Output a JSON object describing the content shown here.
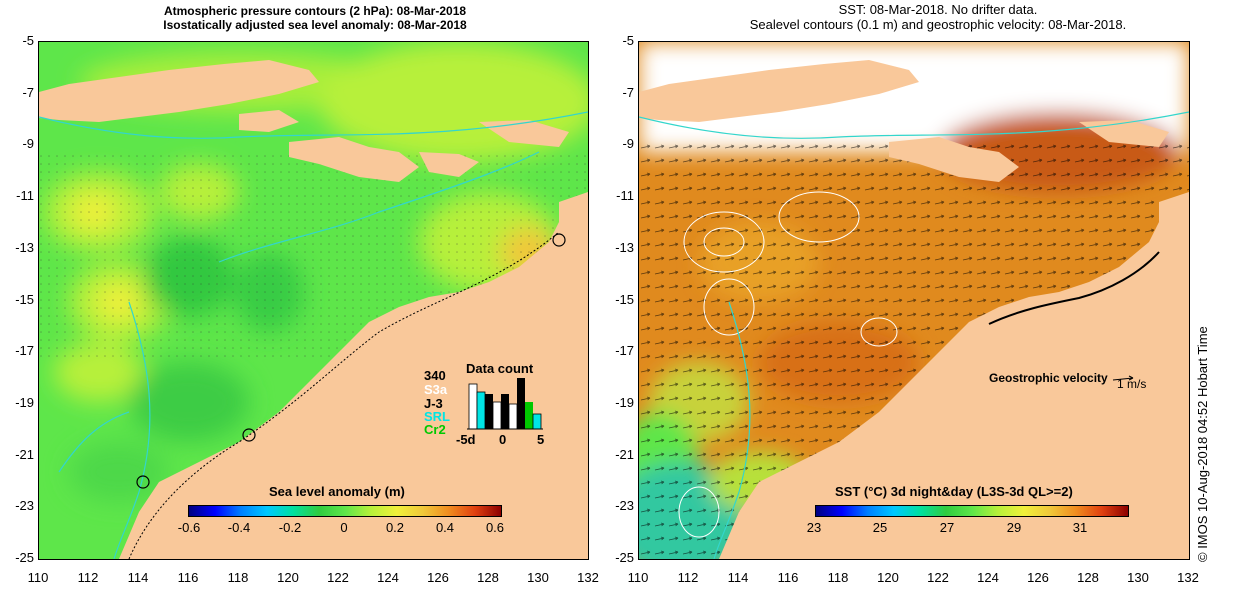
{
  "left": {
    "title1": "Atmospheric pressure contours (2 hPa): 08-Mar-2018",
    "title2": "Isostatically adjusted sea level anomaly: 08-Mar-2018",
    "colorbar_label": "Sea level anomaly (m)",
    "colorbar_ticks": [
      "-0.6",
      "-0.4",
      "-0.2",
      "0",
      "0.2",
      "0.4",
      "0.6"
    ],
    "data_count": {
      "number": "340",
      "title": "Data count",
      "sats": [
        {
          "name": "S3a",
          "color": "#ffffff"
        },
        {
          "name": "J-3",
          "color": "#000000"
        },
        {
          "name": "SRL",
          "color": "#00e5e5"
        },
        {
          "name": "Cr2",
          "color": "#00c800"
        }
      ],
      "ticks": [
        "-5d",
        "0",
        "5"
      ]
    }
  },
  "right": {
    "title1": "SST: 08-Mar-2018. No drifter data.",
    "title2": "Sealevel contours (0.1 m) and geostrophic velocity: 08-Mar-2018.",
    "colorbar_label": "SST (°C) 3d night&day (L3S-3d QL>=2)",
    "colorbar_ticks": [
      "23",
      "25",
      "27",
      "29",
      "31"
    ],
    "velocity_label": "Geostrophic velocity",
    "velocity_scale": "1 m/s",
    "credit": "© IMOS 10-Aug-2018 04:52 Hobart Time"
  },
  "axes": {
    "y_ticks": [
      "-5",
      "-7",
      "-9",
      "-11",
      "-13",
      "-15",
      "-17",
      "-19",
      "-21",
      "-23",
      "-25"
    ],
    "x_ticks": [
      "110",
      "112",
      "114",
      "116",
      "118",
      "120",
      "122",
      "124",
      "126",
      "128",
      "130",
      "132"
    ]
  },
  "colors": {
    "land": "#f9c89a",
    "sla_base": "#5ee64a",
    "sst_base": "#e08a1e",
    "contour": "#33d6cc"
  }
}
